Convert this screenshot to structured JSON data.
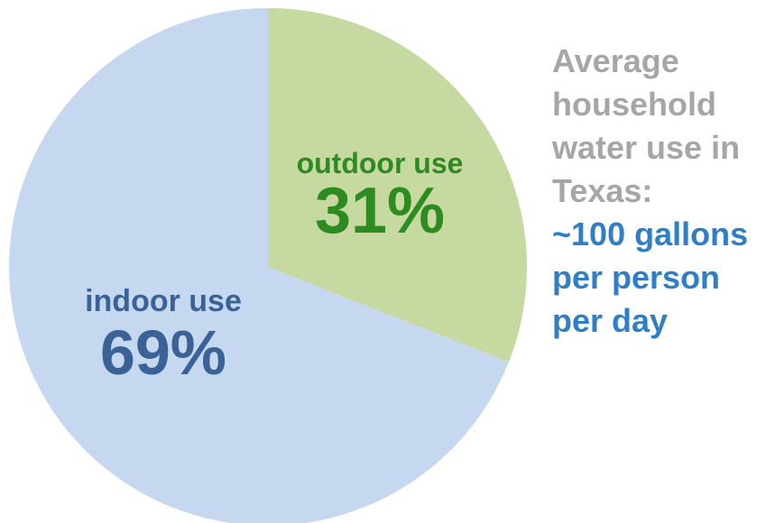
{
  "chart_data": {
    "type": "pie",
    "slices": [
      {
        "name": "outdoor use",
        "label": "outdoor use",
        "value": 31,
        "display_value": "31%",
        "color": "#c5d9a0",
        "label_color": "#2e8b20"
      },
      {
        "name": "indoor use",
        "label": "indoor use",
        "value": 69,
        "display_value": "69%",
        "color": "#c6d8f0",
        "label_color": "#3a6297"
      }
    ],
    "start_angle": "12 o'clock",
    "direction": "clockwise"
  },
  "caption": {
    "gray_lines": [
      "Average",
      "household",
      "water use in",
      "Texas:"
    ],
    "blue_lines": [
      "~100 gallons",
      "per person",
      "per day"
    ],
    "gray_color": "#a6a6a6",
    "blue_color": "#2f7fc8"
  }
}
